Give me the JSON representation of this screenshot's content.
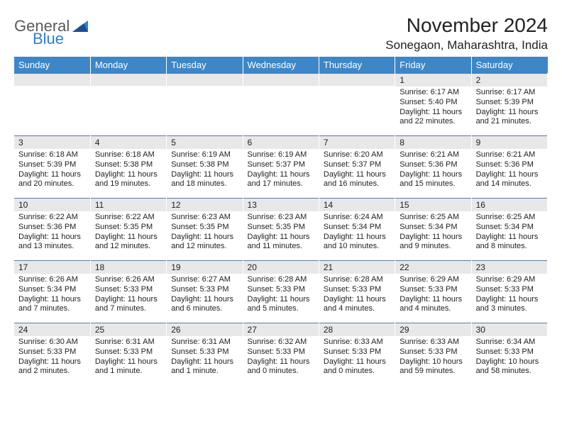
{
  "logo": {
    "general": "General",
    "blue": "Blue"
  },
  "header": {
    "month_title": "November 2024",
    "location": "Sonegaon, Maharashtra, India"
  },
  "colors": {
    "header_bg": "#3d87c9",
    "header_text": "#ffffff",
    "daynum_bg": "#e8e8e8",
    "rule": "#5a7ba3",
    "logo_gray": "#5a5a5a",
    "logo_blue": "#2f7fd1"
  },
  "weekdays": [
    "Sunday",
    "Monday",
    "Tuesday",
    "Wednesday",
    "Thursday",
    "Friday",
    "Saturday"
  ],
  "weeks": [
    [
      null,
      null,
      null,
      null,
      null,
      {
        "num": "1",
        "sunrise": "Sunrise: 6:17 AM",
        "sunset": "Sunset: 5:40 PM",
        "daylight1": "Daylight: 11 hours",
        "daylight2": "and 22 minutes."
      },
      {
        "num": "2",
        "sunrise": "Sunrise: 6:17 AM",
        "sunset": "Sunset: 5:39 PM",
        "daylight1": "Daylight: 11 hours",
        "daylight2": "and 21 minutes."
      }
    ],
    [
      {
        "num": "3",
        "sunrise": "Sunrise: 6:18 AM",
        "sunset": "Sunset: 5:39 PM",
        "daylight1": "Daylight: 11 hours",
        "daylight2": "and 20 minutes."
      },
      {
        "num": "4",
        "sunrise": "Sunrise: 6:18 AM",
        "sunset": "Sunset: 5:38 PM",
        "daylight1": "Daylight: 11 hours",
        "daylight2": "and 19 minutes."
      },
      {
        "num": "5",
        "sunrise": "Sunrise: 6:19 AM",
        "sunset": "Sunset: 5:38 PM",
        "daylight1": "Daylight: 11 hours",
        "daylight2": "and 18 minutes."
      },
      {
        "num": "6",
        "sunrise": "Sunrise: 6:19 AM",
        "sunset": "Sunset: 5:37 PM",
        "daylight1": "Daylight: 11 hours",
        "daylight2": "and 17 minutes."
      },
      {
        "num": "7",
        "sunrise": "Sunrise: 6:20 AM",
        "sunset": "Sunset: 5:37 PM",
        "daylight1": "Daylight: 11 hours",
        "daylight2": "and 16 minutes."
      },
      {
        "num": "8",
        "sunrise": "Sunrise: 6:21 AM",
        "sunset": "Sunset: 5:36 PM",
        "daylight1": "Daylight: 11 hours",
        "daylight2": "and 15 minutes."
      },
      {
        "num": "9",
        "sunrise": "Sunrise: 6:21 AM",
        "sunset": "Sunset: 5:36 PM",
        "daylight1": "Daylight: 11 hours",
        "daylight2": "and 14 minutes."
      }
    ],
    [
      {
        "num": "10",
        "sunrise": "Sunrise: 6:22 AM",
        "sunset": "Sunset: 5:36 PM",
        "daylight1": "Daylight: 11 hours",
        "daylight2": "and 13 minutes."
      },
      {
        "num": "11",
        "sunrise": "Sunrise: 6:22 AM",
        "sunset": "Sunset: 5:35 PM",
        "daylight1": "Daylight: 11 hours",
        "daylight2": "and 12 minutes."
      },
      {
        "num": "12",
        "sunrise": "Sunrise: 6:23 AM",
        "sunset": "Sunset: 5:35 PM",
        "daylight1": "Daylight: 11 hours",
        "daylight2": "and 12 minutes."
      },
      {
        "num": "13",
        "sunrise": "Sunrise: 6:23 AM",
        "sunset": "Sunset: 5:35 PM",
        "daylight1": "Daylight: 11 hours",
        "daylight2": "and 11 minutes."
      },
      {
        "num": "14",
        "sunrise": "Sunrise: 6:24 AM",
        "sunset": "Sunset: 5:34 PM",
        "daylight1": "Daylight: 11 hours",
        "daylight2": "and 10 minutes."
      },
      {
        "num": "15",
        "sunrise": "Sunrise: 6:25 AM",
        "sunset": "Sunset: 5:34 PM",
        "daylight1": "Daylight: 11 hours",
        "daylight2": "and 9 minutes."
      },
      {
        "num": "16",
        "sunrise": "Sunrise: 6:25 AM",
        "sunset": "Sunset: 5:34 PM",
        "daylight1": "Daylight: 11 hours",
        "daylight2": "and 8 minutes."
      }
    ],
    [
      {
        "num": "17",
        "sunrise": "Sunrise: 6:26 AM",
        "sunset": "Sunset: 5:34 PM",
        "daylight1": "Daylight: 11 hours",
        "daylight2": "and 7 minutes."
      },
      {
        "num": "18",
        "sunrise": "Sunrise: 6:26 AM",
        "sunset": "Sunset: 5:33 PM",
        "daylight1": "Daylight: 11 hours",
        "daylight2": "and 7 minutes."
      },
      {
        "num": "19",
        "sunrise": "Sunrise: 6:27 AM",
        "sunset": "Sunset: 5:33 PM",
        "daylight1": "Daylight: 11 hours",
        "daylight2": "and 6 minutes."
      },
      {
        "num": "20",
        "sunrise": "Sunrise: 6:28 AM",
        "sunset": "Sunset: 5:33 PM",
        "daylight1": "Daylight: 11 hours",
        "daylight2": "and 5 minutes."
      },
      {
        "num": "21",
        "sunrise": "Sunrise: 6:28 AM",
        "sunset": "Sunset: 5:33 PM",
        "daylight1": "Daylight: 11 hours",
        "daylight2": "and 4 minutes."
      },
      {
        "num": "22",
        "sunrise": "Sunrise: 6:29 AM",
        "sunset": "Sunset: 5:33 PM",
        "daylight1": "Daylight: 11 hours",
        "daylight2": "and 4 minutes."
      },
      {
        "num": "23",
        "sunrise": "Sunrise: 6:29 AM",
        "sunset": "Sunset: 5:33 PM",
        "daylight1": "Daylight: 11 hours",
        "daylight2": "and 3 minutes."
      }
    ],
    [
      {
        "num": "24",
        "sunrise": "Sunrise: 6:30 AM",
        "sunset": "Sunset: 5:33 PM",
        "daylight1": "Daylight: 11 hours",
        "daylight2": "and 2 minutes."
      },
      {
        "num": "25",
        "sunrise": "Sunrise: 6:31 AM",
        "sunset": "Sunset: 5:33 PM",
        "daylight1": "Daylight: 11 hours",
        "daylight2": "and 1 minute."
      },
      {
        "num": "26",
        "sunrise": "Sunrise: 6:31 AM",
        "sunset": "Sunset: 5:33 PM",
        "daylight1": "Daylight: 11 hours",
        "daylight2": "and 1 minute."
      },
      {
        "num": "27",
        "sunrise": "Sunrise: 6:32 AM",
        "sunset": "Sunset: 5:33 PM",
        "daylight1": "Daylight: 11 hours",
        "daylight2": "and 0 minutes."
      },
      {
        "num": "28",
        "sunrise": "Sunrise: 6:33 AM",
        "sunset": "Sunset: 5:33 PM",
        "daylight1": "Daylight: 11 hours",
        "daylight2": "and 0 minutes."
      },
      {
        "num": "29",
        "sunrise": "Sunrise: 6:33 AM",
        "sunset": "Sunset: 5:33 PM",
        "daylight1": "Daylight: 10 hours",
        "daylight2": "and 59 minutes."
      },
      {
        "num": "30",
        "sunrise": "Sunrise: 6:34 AM",
        "sunset": "Sunset: 5:33 PM",
        "daylight1": "Daylight: 10 hours",
        "daylight2": "and 58 minutes."
      }
    ]
  ]
}
